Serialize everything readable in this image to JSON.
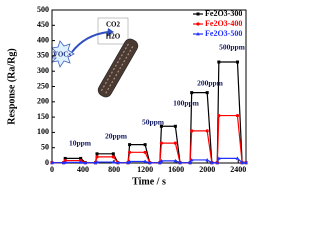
{
  "chart_data": {
    "type": "line",
    "xlabel": "Time / s",
    "ylabel": "Response (Ra/Rg)",
    "x": [
      0,
      150,
      170,
      370,
      430,
      560,
      580,
      790,
      850,
      980,
      1000,
      1200,
      1260,
      1390,
      1410,
      1590,
      1650,
      1780,
      1800,
      2000,
      2060,
      2130,
      2150,
      2390,
      2450,
      2500
    ],
    "series": [
      {
        "name": "Fe2O3-300",
        "color": "#000000",
        "marker": "square",
        "values": [
          1,
          1,
          15,
          15,
          1,
          1,
          30,
          30,
          1,
          1,
          60,
          60,
          1,
          1,
          120,
          120,
          1,
          1,
          230,
          230,
          1,
          1,
          330,
          330,
          1,
          1
        ]
      },
      {
        "name": "Fe2O3-400",
        "color": "#ff0000",
        "marker": "circle",
        "values": [
          1,
          1,
          8,
          8,
          1,
          1,
          20,
          20,
          1,
          1,
          35,
          35,
          1,
          1,
          65,
          65,
          1,
          1,
          105,
          105,
          1,
          1,
          155,
          155,
          1,
          1
        ]
      },
      {
        "name": "Fe2O3-500",
        "color": "#2030ff",
        "marker": "triangle",
        "values": [
          1,
          1,
          2,
          2,
          1,
          1,
          3,
          3,
          1,
          1,
          5,
          5,
          1,
          1,
          7,
          7,
          1,
          1,
          10,
          10,
          1,
          1,
          15,
          15,
          1,
          1
        ]
      }
    ],
    "xlim": [
      0,
      2500
    ],
    "xticks": [
      0,
      400,
      800,
      1200,
      1600,
      2000,
      2400
    ],
    "ylim": [
      0,
      500
    ],
    "yticks": [
      0,
      50,
      100,
      150,
      200,
      250,
      300,
      350,
      400,
      450,
      500
    ],
    "legend": "upper right",
    "annotations": [
      "10ppm",
      "20ppm",
      "50ppm",
      "100ppm",
      "200ppm",
      "500ppm"
    ],
    "inset": [
      "CO2",
      "H2O",
      "VOCs"
    ]
  }
}
